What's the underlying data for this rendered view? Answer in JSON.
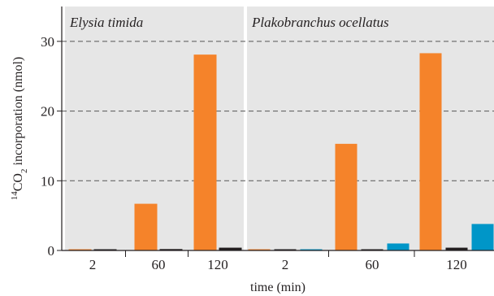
{
  "chart_data": {
    "type": "bar",
    "title": "",
    "xlabel": "time (min)",
    "ylabel": {
      "superscript": "14",
      "main": "CO",
      "subscript": "2",
      "rest": " incorporation (nmol)"
    },
    "ylim": [
      0,
      35
    ],
    "yticks": [
      0,
      10,
      20,
      30
    ],
    "grid": "horizontal dashed",
    "legend": "none",
    "panels": [
      {
        "title": "Elysia timida",
        "categories": [
          "2",
          "60",
          "120"
        ],
        "series": [
          {
            "color": "#f5832a",
            "values": [
              0.1,
              6.7,
              28.1
            ]
          },
          {
            "color": "#231f20",
            "values": [
              0.1,
              0.2,
              0.4
            ]
          }
        ]
      },
      {
        "title": "Plakobranchus ocellatus",
        "categories": [
          "2",
          "60",
          "120"
        ],
        "series": [
          {
            "color": "#f5832a",
            "values": [
              0.1,
              15.3,
              28.3
            ]
          },
          {
            "color": "#231f20",
            "values": [
              0.1,
              0.1,
              0.4
            ]
          },
          {
            "color": "#0096c8",
            "values": [
              0.1,
              1.0,
              3.8
            ]
          }
        ]
      }
    ]
  }
}
